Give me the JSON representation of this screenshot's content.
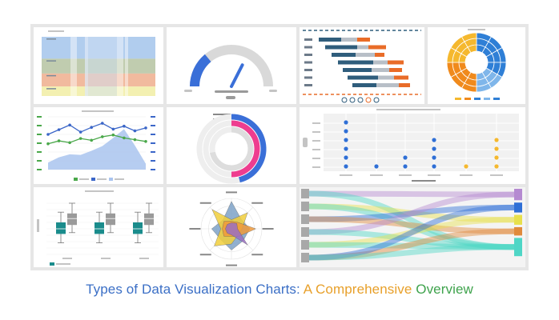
{
  "caption": {
    "part1": "Types of Data Visualization Charts:",
    "part2": "A Comprehensive",
    "part3": "Overview",
    "colors": {
      "part1": "#3b6fc6",
      "part2": "#e8a02a",
      "part3": "#3fa34d"
    }
  },
  "chart_data": [
    {
      "type": "area",
      "tile": "parallel-sets",
      "bands": [
        "#a9c8ec",
        "#b9c7a6",
        "#f0b394",
        "#f2eea8"
      ],
      "band_fractions": [
        0.37,
        0.25,
        0.22,
        0.16
      ]
    },
    {
      "type": "gauge",
      "tile": "gauge",
      "value": 0.28,
      "arc_color": "#3a6fd8",
      "track_color": "#d9d9d9"
    },
    {
      "type": "bar",
      "tile": "gantt",
      "rows": 7,
      "colors": [
        "#2f5d7c",
        "#e96c28",
        "#b8bfc7"
      ]
    },
    {
      "type": "pie",
      "tile": "sunburst",
      "colors": [
        "#f5b82e",
        "#f08a1c",
        "#2f7fd6",
        "#7fb6ea"
      ]
    },
    {
      "type": "line",
      "tile": "dual-axis-line",
      "series": [
        {
          "color": "#3b66c8",
          "values": [
            6,
            6.8,
            7.6,
            6.4,
            7.2,
            7.9,
            6.9,
            7.4,
            6.6,
            7.1
          ]
        },
        {
          "color": "#4aa84a",
          "values": [
            4.4,
            4.9,
            4.6,
            5.3,
            5.0,
            5.6,
            5.9,
            5.4,
            5.1,
            4.8
          ]
        },
        {
          "color": "#a9c4ef",
          "values": [
            1.2,
            2.1,
            2.6,
            2.5,
            3.2,
            4.0,
            5.4,
            6.9,
            4.1,
            1.0
          ]
        }
      ]
    },
    {
      "type": "bar",
      "tile": "radial-bar",
      "rings": [
        {
          "color": "#3a6fd8",
          "value": 0.46
        },
        {
          "color": "#ee3d8f",
          "value": 0.5
        },
        {
          "color": "#dddddd",
          "value": 0.72
        }
      ]
    },
    {
      "type": "scatter",
      "tile": "dot-strip",
      "columns": [
        {
          "color": "#2f6fd6",
          "count": 6
        },
        {
          "color": "#2f6fd6",
          "count": 1
        },
        {
          "color": "#2f6fd6",
          "count": 2
        },
        {
          "color": "#2f6fd6",
          "count": 4
        },
        {
          "color": "#f5b82e",
          "count": 1
        },
        {
          "color": "#f5b82e",
          "count": 4
        }
      ]
    },
    {
      "type": "bar",
      "tile": "box-plot",
      "groups": 3,
      "colors": [
        "#1a8c8c",
        "#9a9a9a"
      ],
      "boxes": [
        {
          "q1": 3.2,
          "med": 4.0,
          "q3": 5.0,
          "lo": 1.8,
          "hi": 6.6
        },
        {
          "q1": 4.6,
          "med": 5.6,
          "q3": 6.4,
          "lo": 3.4,
          "hi": 8.0
        }
      ]
    },
    {
      "type": "area",
      "tile": "radar",
      "axes": 8,
      "series": [
        {
          "color": "#7ea3c8",
          "values": [
            0.9,
            0.45,
            0.6,
            0.55,
            0.7,
            0.5,
            0.65,
            0.4
          ]
        },
        {
          "color": "#f2cf3c",
          "values": [
            0.3,
            0.75,
            0.35,
            0.3,
            0.5,
            0.8,
            0.35,
            0.9
          ]
        },
        {
          "color": "#f09a3a",
          "values": [
            0.25,
            0.3,
            0.8,
            0.35,
            0.25,
            0.35,
            0.3,
            0.35
          ]
        },
        {
          "color": "#9a6fc2",
          "values": [
            0.2,
            0.25,
            0.2,
            0.75,
            0.2,
            0.2,
            0.2,
            0.2
          ]
        }
      ]
    },
    {
      "type": "area",
      "tile": "sankey",
      "targets": [
        {
          "color": "#b58ad1",
          "weight": 0.15
        },
        {
          "color": "#2f6fd6",
          "weight": 0.13
        },
        {
          "color": "#e7e04d",
          "weight": 0.13
        },
        {
          "color": "#e08a3c",
          "weight": 0.11
        },
        {
          "color": "#4fd6c6",
          "weight": 0.24
        }
      ]
    }
  ]
}
